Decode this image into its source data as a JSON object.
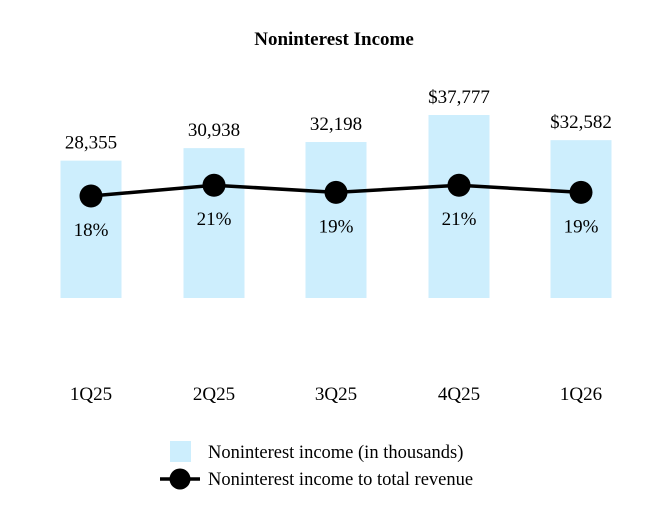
{
  "chart_data": {
    "type": "bar",
    "title": "Noninterest Income",
    "categories": [
      "1Q25",
      "2Q25",
      "3Q25",
      "4Q25",
      "1Q26"
    ],
    "series": [
      {
        "name": "Noninterest income (in thousands)",
        "type": "bar",
        "values": [
          28355,
          30938,
          32198,
          37777,
          32582
        ],
        "value_labels": [
          "28,355",
          "30,938",
          "32,198",
          "$37,777",
          "$32,582"
        ],
        "color": "#cdeefd"
      },
      {
        "name": "Noninterest income to total revenue",
        "type": "line",
        "values": [
          18,
          21,
          19,
          21,
          19
        ],
        "value_labels": [
          "18%",
          "21%",
          "19%",
          "21%",
          "19%"
        ],
        "color": "#000000"
      }
    ],
    "legend_position": "bottom",
    "grid": false
  }
}
